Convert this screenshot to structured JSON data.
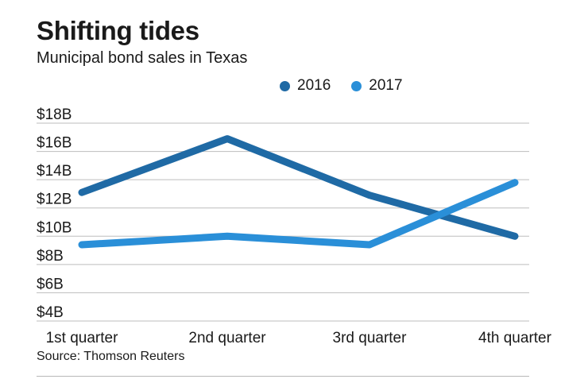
{
  "header": {
    "title": "Shifting tides",
    "subtitle": "Municipal bond sales in Texas"
  },
  "source": "Source: Thomson Reuters",
  "chart_data": {
    "type": "line",
    "title": "Shifting tides",
    "subtitle": "Municipal bond sales in Texas",
    "categories": [
      "1st quarter",
      "2nd quarter",
      "3rd quarter",
      "4th quarter"
    ],
    "series": [
      {
        "name": "2016",
        "color": "#1f6aa5",
        "values": [
          13.1,
          16.9,
          12.9,
          10.0
        ]
      },
      {
        "name": "2017",
        "color": "#2a8fd8",
        "values": [
          9.4,
          10.0,
          9.4,
          13.8
        ]
      }
    ],
    "y_ticks": [
      4,
      6,
      8,
      10,
      12,
      14,
      16,
      18
    ],
    "y_tick_labels": [
      "$4B",
      "$6B",
      "$8B",
      "$10B",
      "$12B",
      "$14B",
      "$16B",
      "$18B"
    ],
    "ylim": [
      4,
      18
    ],
    "unit": "$B",
    "legend": "top-center",
    "grid": true
  }
}
